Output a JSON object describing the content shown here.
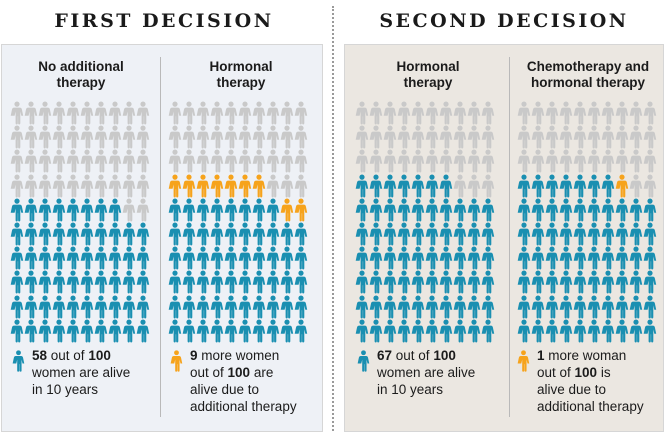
{
  "headings": {
    "first": "FIRST DECISION",
    "second": "SECOND DECISION"
  },
  "colors": {
    "survived": "#1a8fb1",
    "additional": "#f6a31c",
    "other": "#c9c9c9"
  },
  "panels": [
    {
      "columns": [
        {
          "title_line1": "No additional",
          "title_line2": "therapy",
          "blue": 58,
          "orange": 0
        },
        {
          "title_line1": "Hormonal",
          "title_line2": "therapy",
          "blue": 58,
          "orange": 9
        }
      ],
      "legend_main": {
        "num": "58",
        "t1": " out of ",
        "total": "100",
        "line2": "women are alive",
        "line3": "in 10 years"
      },
      "legend_add": {
        "num": "9",
        "t1": " more women",
        "line2a": "out of ",
        "total": "100",
        "line2b": " are",
        "line3": "alive due to",
        "line4": "additional therapy"
      }
    },
    {
      "columns": [
        {
          "title_line1": "Hormonal",
          "title_line2": "therapy",
          "blue": 67,
          "orange": 0
        },
        {
          "title_line1": "Chemotherapy and",
          "title_line2": "hormonal therapy",
          "blue": 67,
          "orange": 1
        }
      ],
      "legend_main": {
        "num": "67",
        "t1": " out of ",
        "total": "100",
        "line2": "women are alive",
        "line3": "in 10 years"
      },
      "legend_add": {
        "num": "1",
        "t1": " more woman",
        "line2a": "out of ",
        "total": "100",
        "line2b": " is",
        "line3": "alive due to",
        "line4": "additional therapy"
      }
    }
  ]
}
